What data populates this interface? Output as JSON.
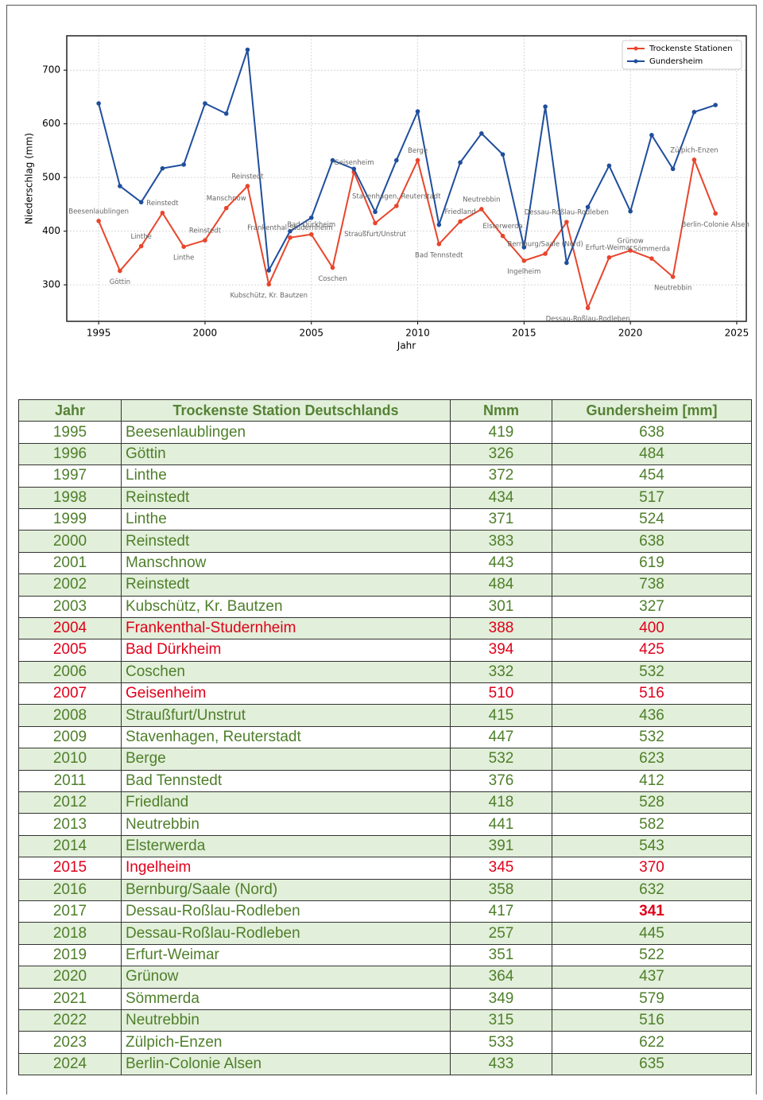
{
  "chart_data": {
    "type": "line",
    "x": [
      1995,
      1996,
      1997,
      1998,
      1999,
      2000,
      2001,
      2002,
      2003,
      2004,
      2005,
      2006,
      2007,
      2008,
      2009,
      2010,
      2011,
      2012,
      2013,
      2014,
      2015,
      2016,
      2017,
      2018,
      2019,
      2020,
      2021,
      2022,
      2023,
      2024
    ],
    "series": [
      {
        "name": "Trockenste Stationen",
        "color": "#e8452c",
        "values": [
          419,
          326,
          372,
          434,
          371,
          383,
          443,
          484,
          301,
          388,
          394,
          332,
          510,
          415,
          447,
          532,
          376,
          418,
          441,
          391,
          345,
          358,
          417,
          257,
          351,
          364,
          349,
          315,
          533,
          433
        ]
      },
      {
        "name": "Gundersheim",
        "color": "#1f4e9c",
        "values": [
          638,
          484,
          454,
          517,
          524,
          638,
          619,
          738,
          327,
          400,
          425,
          532,
          516,
          436,
          532,
          623,
          412,
          528,
          582,
          543,
          370,
          632,
          341,
          445,
          522,
          437,
          579,
          516,
          622,
          635
        ]
      }
    ],
    "annotations": [
      "Beesenlaublingen",
      "Göttin",
      "Linthe",
      "Reinstedt",
      "Linthe",
      "Reinstedt",
      "Manschnow",
      "Reinstedt",
      "Kubschütz, Kr. Bautzen",
      "Frankenthal-Studernheim",
      "Bad Dürkheim",
      "Coschen",
      "Geisenheim",
      "Straußfurt/Unstrut",
      "Stavenhagen, Reuterstadt",
      "Berge",
      "Bad Tennstedt",
      "Friedland",
      "Neutrebbin",
      "Elsterwerda",
      "Ingelheim",
      "Bernburg/Saale (Nord)",
      "Dessau-Roßlau-Rodleben",
      "Dessau-Roßlau-Rodleben",
      "Erfurt-Weimar",
      "Grünow",
      "Sömmerda",
      "Neutrebbin",
      "Zülpich-Enzen",
      "Berlin-Colonie Alsen"
    ],
    "xlabel": "Jahr",
    "ylabel": "Niederschlag (mm)",
    "xlim": [
      1993.5,
      2025.45
    ],
    "ylim": [
      232,
      764
    ],
    "xticks": [
      1995,
      2000,
      2005,
      2010,
      2015,
      2020,
      2025
    ],
    "yticks": [
      300,
      400,
      500,
      600,
      700
    ],
    "grid": true,
    "legend": "upper right"
  },
  "table": {
    "header": [
      "Jahr",
      "Trockenste Station Deutschlands",
      "Nmm",
      "Gundersheim [mm]"
    ],
    "highlight_color": "#e0001b",
    "rows": [
      {
        "cells": [
          1995,
          "Beesenlaublingen",
          419,
          638
        ]
      },
      {
        "cells": [
          1996,
          "Göttin",
          326,
          484
        ]
      },
      {
        "cells": [
          1997,
          "Linthe",
          372,
          454
        ]
      },
      {
        "cells": [
          1998,
          "Reinstedt",
          434,
          517
        ]
      },
      {
        "cells": [
          1999,
          "Linthe",
          371,
          524
        ]
      },
      {
        "cells": [
          2000,
          "Reinstedt",
          383,
          638
        ]
      },
      {
        "cells": [
          2001,
          "Manschnow",
          443,
          619
        ]
      },
      {
        "cells": [
          2002,
          "Reinstedt",
          484,
          738
        ]
      },
      {
        "cells": [
          2003,
          "Kubschütz, Kr. Bautzen",
          301,
          327
        ]
      },
      {
        "cells": [
          2004,
          "Frankenthal-Studernheim",
          388,
          400
        ],
        "highlight": true
      },
      {
        "cells": [
          2005,
          "Bad Dürkheim",
          394,
          425
        ],
        "highlight": true
      },
      {
        "cells": [
          2006,
          "Coschen",
          332,
          532
        ]
      },
      {
        "cells": [
          2007,
          "Geisenheim",
          510,
          516
        ],
        "highlight": true
      },
      {
        "cells": [
          2008,
          "Straußfurt/Unstrut",
          415,
          436
        ]
      },
      {
        "cells": [
          2009,
          "Stavenhagen, Reuterstadt",
          447,
          532
        ]
      },
      {
        "cells": [
          2010,
          "Berge",
          532,
          623
        ]
      },
      {
        "cells": [
          2011,
          "Bad Tennstedt",
          376,
          412
        ]
      },
      {
        "cells": [
          2012,
          "Friedland",
          418,
          528
        ]
      },
      {
        "cells": [
          2013,
          "Neutrebbin",
          441,
          582
        ]
      },
      {
        "cells": [
          2014,
          "Elsterwerda",
          391,
          543
        ]
      },
      {
        "cells": [
          2015,
          "Ingelheim",
          345,
          370
        ],
        "highlight": true
      },
      {
        "cells": [
          2016,
          "Bernburg/Saale (Nord)",
          358,
          632
        ]
      },
      {
        "cells": [
          2017,
          "Dessau-Roßlau-Rodleben",
          417,
          341
        ],
        "bold_highlight_cell": 3
      },
      {
        "cells": [
          2018,
          "Dessau-Roßlau-Rodleben",
          257,
          445
        ]
      },
      {
        "cells": [
          2019,
          "Erfurt-Weimar",
          351,
          522
        ]
      },
      {
        "cells": [
          2020,
          "Grünow",
          364,
          437
        ]
      },
      {
        "cells": [
          2021,
          "Sömmerda",
          349,
          579
        ]
      },
      {
        "cells": [
          2022,
          "Neutrebbin",
          315,
          516
        ]
      },
      {
        "cells": [
          2023,
          "Zülpich-Enzen",
          533,
          622
        ]
      },
      {
        "cells": [
          2024,
          "Berlin-Colonie Alsen",
          433,
          635
        ]
      }
    ]
  }
}
